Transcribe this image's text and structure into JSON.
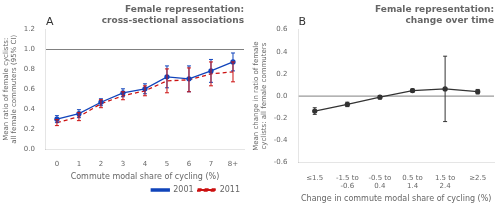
{
  "chart_data": [
    {
      "type": "line",
      "title": "Female representation:\ncross-sectional associations",
      "panel_label": "A",
      "x_label": "Commute modal share of cycling (%)",
      "y_label": "Mean ratio of female cyclists:\nall female commuters (95% CI)",
      "categories": [
        "0",
        "1",
        "2",
        "3",
        "4",
        "5",
        "6",
        "7",
        "8+"
      ],
      "series": [
        {
          "name": "2001",
          "color": "#1144bb",
          "marker": "o",
          "line_style": "solid",
          "values": [
            0.3,
            0.355,
            0.47,
            0.565,
            0.605,
            0.725,
            0.705,
            0.785,
            0.875
          ],
          "lower": [
            0.265,
            0.315,
            0.435,
            0.525,
            0.555,
            0.615,
            0.575,
            0.67,
            0.785
          ],
          "upper": [
            0.335,
            0.395,
            0.505,
            0.605,
            0.655,
            0.835,
            0.835,
            0.9,
            0.965
          ]
        },
        {
          "name": "2011",
          "color": "#cc1111",
          "marker": "none",
          "line_style": "dashed",
          "values": [
            0.265,
            0.325,
            0.455,
            0.535,
            0.585,
            0.685,
            0.695,
            0.755,
            0.775
          ],
          "lower": [
            0.235,
            0.285,
            0.415,
            0.495,
            0.535,
            0.565,
            0.575,
            0.635,
            0.675
          ],
          "upper": [
            0.295,
            0.365,
            0.495,
            0.575,
            0.635,
            0.805,
            0.815,
            0.875,
            0.875
          ]
        }
      ],
      "reference_line": {
        "value": 1.0,
        "color": "gray"
      },
      "ylim": [
        0,
        1.2
      ],
      "yticks": [
        {
          "value": 0,
          "label": "0.0"
        },
        0.2,
        0.4,
        0.6,
        0.8,
        {
          "value": 1,
          "label": "1.0"
        },
        1.2
      ],
      "grid": false,
      "legend": "lower right"
    },
    {
      "type": "line",
      "title": "Female representation:\nchange over time",
      "panel_label": "B",
      "x_label": "Change in commute modal share of cycling (%)",
      "y_label": "Mean change in ratio of female\ncyclists: all female commuters",
      "categories": [
        "≤1.5",
        "-1.5 to\n-0.6",
        "-0.5 to\n0.4",
        "0.5 to\n1.4",
        "1.5 to\n2.4",
        "≥2.5"
      ],
      "series": [
        {
          "color": "#333333",
          "marker": "o",
          "line_style": "solid",
          "values": [
            -0.135,
            -0.075,
            -0.01,
            0.05,
            0.065,
            0.04
          ],
          "lower": [
            -0.165,
            -0.095,
            -0.025,
            0.035,
            -0.23,
            0.02
          ],
          "upper": [
            -0.105,
            -0.055,
            0.005,
            0.065,
            0.36,
            0.06
          ]
        }
      ],
      "reference_line": {
        "value": 0,
        "color": "gray"
      },
      "ylim": [
        -0.6,
        0.6
      ],
      "yticks": [
        -0.6,
        -0.4,
        -0.2,
        {
          "value": 0,
          "label": "0.0"
        },
        0.2,
        0.4,
        0.6
      ],
      "grid": false
    }
  ]
}
